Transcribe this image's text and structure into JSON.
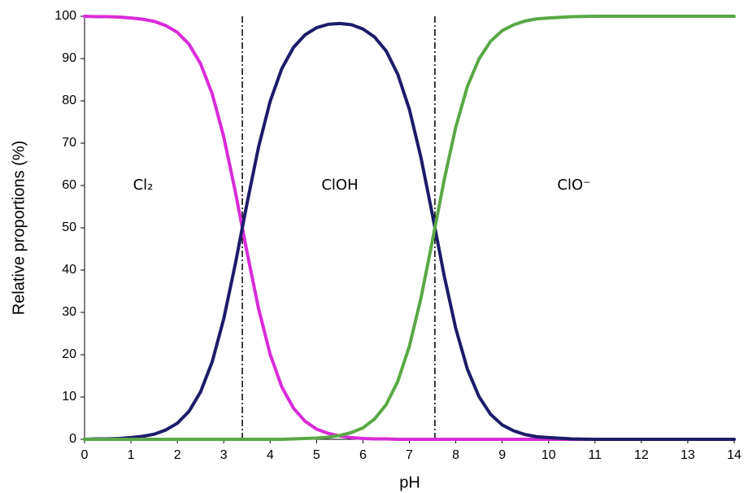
{
  "chart_data": {
    "type": "line",
    "x_label": "pH",
    "y_label": "Relative proportions (%)",
    "xlim": [
      0,
      14
    ],
    "ylim": [
      0,
      100
    ],
    "xticks": [
      0,
      1,
      2,
      3,
      4,
      5,
      6,
      7,
      8,
      9,
      10,
      11,
      12,
      13,
      14
    ],
    "yticks": [
      0,
      10,
      20,
      30,
      40,
      50,
      60,
      70,
      80,
      90,
      100
    ],
    "grid": false,
    "vlines": [
      3.4,
      7.55
    ],
    "x": [
      0,
      0.25,
      0.5,
      0.75,
      1,
      1.25,
      1.5,
      1.75,
      2,
      2.25,
      2.5,
      2.75,
      3,
      3.25,
      3.5,
      3.75,
      4,
      4.25,
      4.5,
      4.75,
      5,
      5.25,
      5.5,
      5.75,
      6,
      6.25,
      6.5,
      6.75,
      7,
      7.25,
      7.5,
      7.75,
      8,
      8.25,
      8.5,
      8.75,
      9,
      9.25,
      9.5,
      9.75,
      10,
      10.5,
      11,
      12,
      13,
      14
    ],
    "series": [
      {
        "name": "Cl₂",
        "color": "#d92bd9",
        "values": [
          100.0,
          99.9,
          99.9,
          99.8,
          99.6,
          99.3,
          98.8,
          97.8,
          96.2,
          93.4,
          88.8,
          81.7,
          71.5,
          58.5,
          44.3,
          30.9,
          20.1,
          12.4,
          7.4,
          4.3,
          2.4,
          1.4,
          0.8,
          0.4,
          0.2,
          0.1,
          0.1,
          0,
          0,
          0,
          0,
          0,
          0,
          0,
          0,
          0,
          0,
          0,
          0,
          0,
          0,
          0,
          0,
          0,
          0,
          0
        ]
      },
      {
        "name": "ClOH",
        "color": "#1c1c6b",
        "values": [
          0.0,
          0.1,
          0.1,
          0.2,
          0.4,
          0.7,
          1.2,
          2.2,
          3.8,
          6.6,
          11.2,
          18.3,
          28.5,
          41.5,
          55.7,
          69.1,
          79.9,
          87.6,
          92.6,
          95.6,
          97.3,
          98.1,
          98.3,
          98.0,
          97.0,
          95.1,
          91.8,
          86.3,
          78.0,
          66.6,
          52.9,
          38.7,
          26.2,
          16.6,
          10.1,
          5.9,
          3.4,
          2.0,
          1.1,
          0.6,
          0.4,
          0.1,
          0,
          0,
          0,
          0
        ]
      },
      {
        "name": "ClO⁻",
        "color": "#5aa846",
        "values": [
          0,
          0,
          0,
          0,
          0,
          0,
          0,
          0,
          0,
          0,
          0,
          0,
          0,
          0,
          0,
          0,
          0,
          0,
          0.1,
          0.2,
          0.3,
          0.5,
          0.9,
          1.6,
          2.7,
          4.8,
          8.2,
          13.7,
          22.0,
          33.4,
          47.1,
          61.3,
          73.8,
          83.4,
          89.9,
          94.1,
          96.6,
          98.0,
          98.9,
          99.4,
          99.6,
          99.9,
          100,
          100,
          100,
          100
        ]
      }
    ]
  }
}
